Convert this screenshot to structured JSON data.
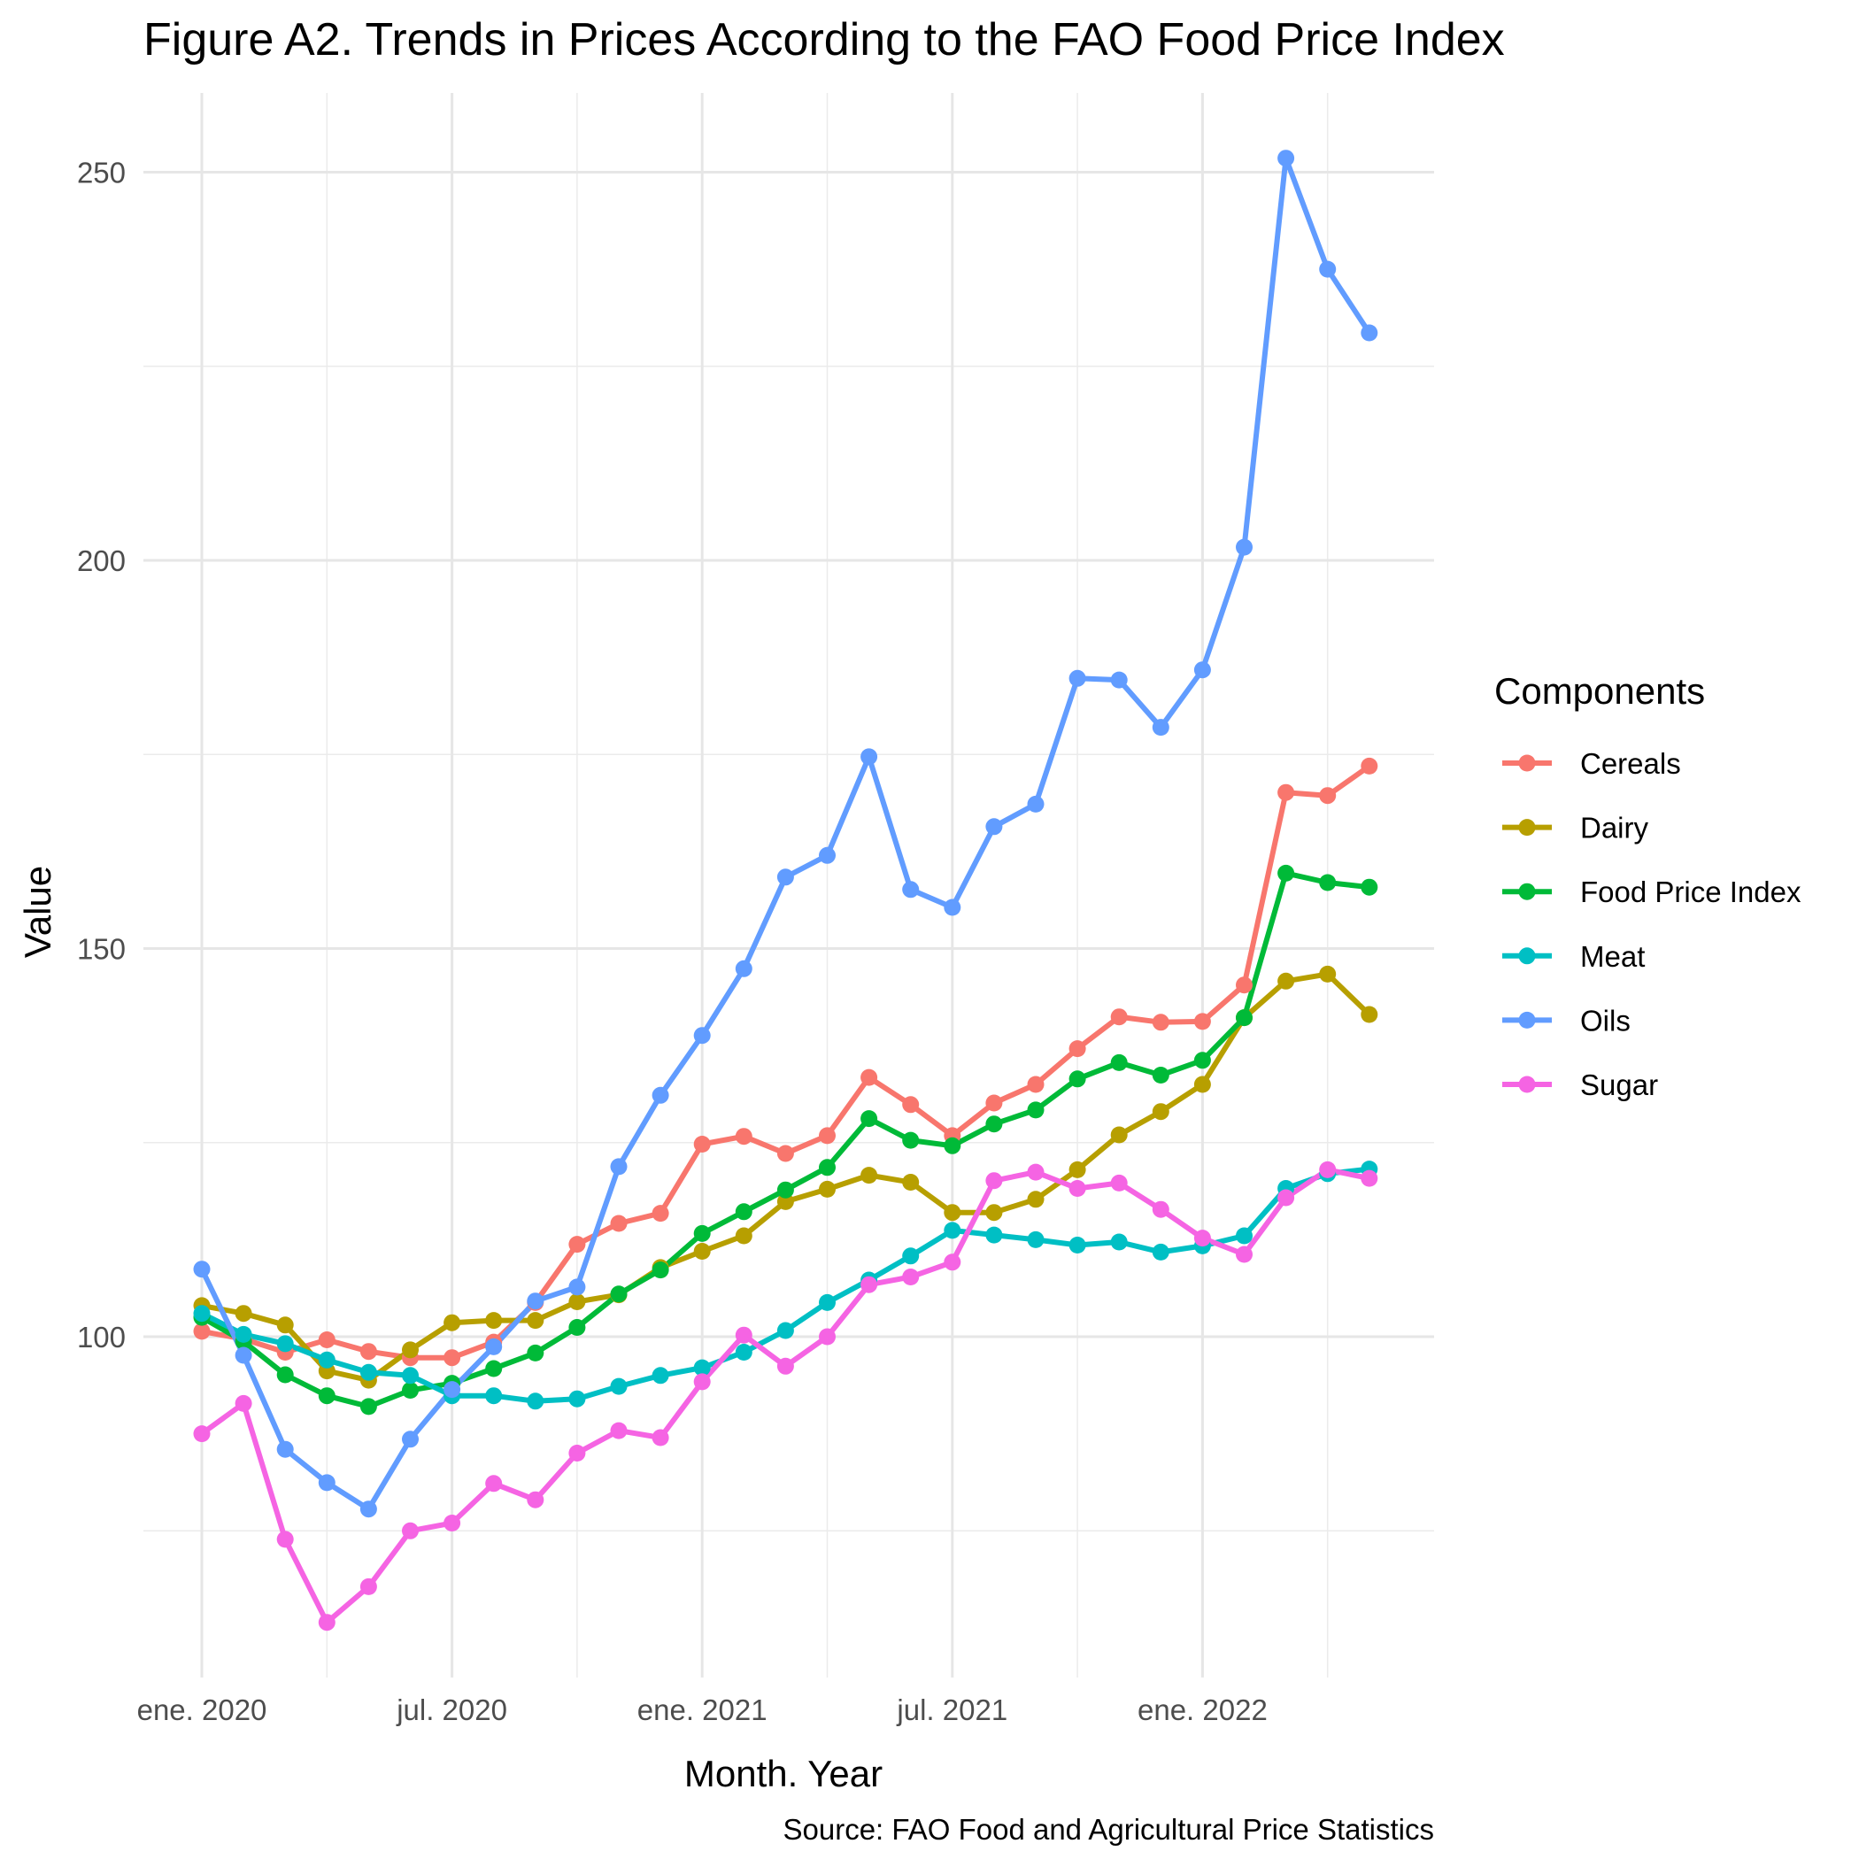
{
  "chart_data": {
    "type": "line",
    "title": "Figure A2. Trends in Prices According to the FAO Food Price Index",
    "xlabel": "Month. Year",
    "ylabel": "Value",
    "caption": "Source: FAO Food and Agricultural Price Statistics",
    "legend_title": "Components",
    "legend_position": "right",
    "grid": true,
    "x": [
      "2020-01",
      "2020-02",
      "2020-03",
      "2020-04",
      "2020-05",
      "2020-06",
      "2020-07",
      "2020-08",
      "2020-09",
      "2020-10",
      "2020-11",
      "2020-12",
      "2021-01",
      "2021-02",
      "2021-03",
      "2021-04",
      "2021-05",
      "2021-06",
      "2021-07",
      "2021-08",
      "2021-09",
      "2021-10",
      "2021-11",
      "2021-12",
      "2022-01",
      "2022-02",
      "2022-03",
      "2022-04",
      "2022-05"
    ],
    "x_ticks": [
      {
        "x": "2020-01",
        "label": "ene. 2020"
      },
      {
        "x": "2020-07",
        "label": "jul. 2020"
      },
      {
        "x": "2021-01",
        "label": "ene. 2021"
      },
      {
        "x": "2021-07",
        "label": "jul. 2021"
      },
      {
        "x": "2022-01",
        "label": "ene. 2022"
      }
    ],
    "x_minor_ticks": [
      "2020-04",
      "2020-10",
      "2021-04",
      "2021-10",
      "2022-04"
    ],
    "ylim": [
      56,
      262
    ],
    "y_ticks": [
      100,
      150,
      200,
      250
    ],
    "y_minor_ticks": [
      75,
      125,
      175,
      225
    ],
    "series": [
      {
        "name": "Cereals",
        "color": "#F8766D",
        "values": [
          100.7,
          99.7,
          98.0,
          99.6,
          98.1,
          97.3,
          97.3,
          99.3,
          104.4,
          111.9,
          114.6,
          115.9,
          124.8,
          125.8,
          123.6,
          125.9,
          133.4,
          129.9,
          125.9,
          130.1,
          132.5,
          137.1,
          141.2,
          140.5,
          140.6,
          145.3,
          170.1,
          169.7,
          173.5
        ]
      },
      {
        "name": "Dairy",
        "color": "#B79F00",
        "values": [
          104.0,
          103.0,
          101.5,
          95.6,
          94.4,
          98.3,
          101.8,
          102.1,
          102.1,
          104.5,
          105.4,
          108.9,
          111.0,
          113.0,
          117.4,
          119.0,
          120.8,
          119.9,
          116.0,
          116.0,
          117.7,
          121.5,
          126.0,
          129.0,
          132.5,
          141.1,
          145.8,
          146.7,
          141.5
        ]
      },
      {
        "name": "Food Price Index",
        "color": "#00BA38",
        "values": [
          102.5,
          99.4,
          95.1,
          92.4,
          91.0,
          93.1,
          94.0,
          95.9,
          97.9,
          101.2,
          105.5,
          108.6,
          113.3,
          116.1,
          118.9,
          121.8,
          128.1,
          125.3,
          124.6,
          127.4,
          129.2,
          133.2,
          135.3,
          133.7,
          135.6,
          141.1,
          159.7,
          158.5,
          157.9
        ]
      },
      {
        "name": "Meat",
        "color": "#00BFC4",
        "values": [
          103.0,
          100.3,
          99.1,
          97.0,
          95.4,
          95.0,
          92.4,
          92.4,
          91.7,
          92.0,
          93.6,
          95.0,
          96.0,
          98.0,
          100.8,
          104.4,
          107.3,
          110.4,
          113.7,
          113.1,
          112.5,
          111.8,
          112.2,
          110.9,
          111.7,
          113.0,
          119.1,
          121.0,
          121.6
        ]
      },
      {
        "name": "Oils",
        "color": "#619CFF",
        "values": [
          108.7,
          97.6,
          85.5,
          81.2,
          77.8,
          86.8,
          93.2,
          98.7,
          104.6,
          106.4,
          121.9,
          131.1,
          138.8,
          147.4,
          159.2,
          162.0,
          174.7,
          157.6,
          155.3,
          165.7,
          168.6,
          184.8,
          184.6,
          178.5,
          185.9,
          201.7,
          251.8,
          237.5,
          229.3
        ]
      },
      {
        "name": "Sugar",
        "color": "#F564E3",
        "values": [
          87.5,
          91.4,
          73.9,
          63.2,
          67.8,
          75.0,
          76.0,
          81.1,
          79.0,
          85.0,
          87.9,
          87.0,
          94.2,
          100.2,
          96.2,
          100.0,
          106.7,
          107.7,
          109.6,
          120.1,
          121.2,
          119.1,
          119.8,
          116.4,
          112.7,
          110.6,
          117.9,
          121.5,
          120.4
        ]
      }
    ]
  }
}
